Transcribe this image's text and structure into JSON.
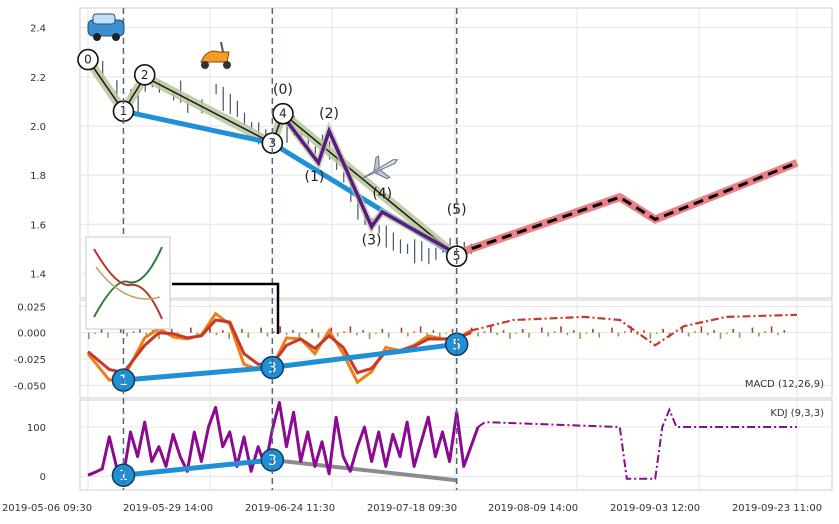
{
  "chart_data": [
    {
      "type": "line",
      "panel": "price",
      "ylim": [
        1.3,
        2.48
      ],
      "yticks": [
        "2.4",
        "2.2",
        "2.0",
        "1.8",
        "1.6",
        "1.4"
      ],
      "grid": true,
      "x_domain": [
        0,
        100
      ],
      "price_series": [
        [
          0,
          2.28
        ],
        [
          2,
          2.22
        ],
        [
          4,
          2.15
        ],
        [
          5,
          2.06
        ],
        [
          6,
          2.13
        ],
        [
          7,
          2.1
        ],
        [
          8,
          2.18
        ],
        [
          9,
          2.19
        ],
        [
          10,
          2.16
        ],
        [
          12,
          2.12
        ],
        [
          13,
          2.14
        ],
        [
          14,
          2.09
        ],
        [
          16,
          2.08
        ],
        [
          18,
          2.15
        ],
        [
          19,
          2.11
        ],
        [
          20,
          2.09
        ],
        [
          21,
          2.07
        ],
        [
          22,
          2.03
        ],
        [
          23,
          2.0
        ],
        [
          24,
          1.97
        ],
        [
          25,
          1.95
        ],
        [
          26,
          1.93
        ],
        [
          27,
          2.01
        ],
        [
          28,
          1.98
        ],
        [
          29,
          2.0
        ],
        [
          30,
          1.96
        ],
        [
          31,
          1.94
        ],
        [
          32,
          1.9
        ],
        [
          33,
          1.92
        ],
        [
          34,
          1.9
        ],
        [
          35,
          1.85
        ],
        [
          36,
          1.79
        ],
        [
          37,
          1.74
        ],
        [
          38,
          1.66
        ],
        [
          39,
          1.63
        ],
        [
          40,
          1.6
        ],
        [
          41,
          1.58
        ],
        [
          42,
          1.55
        ],
        [
          43,
          1.53
        ],
        [
          44,
          1.51
        ],
        [
          45,
          1.5
        ],
        [
          46,
          1.49
        ],
        [
          47,
          1.49
        ],
        [
          48,
          1.47
        ],
        [
          49,
          1.48
        ],
        [
          50,
          1.5
        ],
        [
          51,
          1.5
        ],
        [
          52,
          1.51
        ],
        [
          53,
          1.5
        ],
        [
          54,
          1.5
        ]
      ],
      "wave_main": {
        "labels": [
          "0",
          "1",
          "2",
          "3",
          "4",
          "5"
        ],
        "points": [
          [
            0,
            2.27
          ],
          [
            5,
            2.06
          ],
          [
            8,
            2.2
          ],
          [
            26,
            1.93
          ],
          [
            27.5,
            2.05
          ],
          [
            52,
            1.47
          ]
        ]
      },
      "wave_sub": {
        "labels": [
          "(0)",
          "(1)",
          "(2)",
          "(3)",
          "(4)",
          "(5)"
        ],
        "points": [
          [
            27.5,
            2.04
          ],
          [
            32.5,
            1.85
          ],
          [
            34,
            1.98
          ],
          [
            40,
            1.59
          ],
          [
            41.5,
            1.65
          ],
          [
            52,
            1.48
          ]
        ]
      },
      "trendline_1_3": [
        [
          5,
          2.06
        ],
        [
          26,
          1.93
        ],
        [
          52,
          1.47
        ]
      ],
      "projection": [
        [
          52,
          1.48
        ],
        [
          75,
          1.71
        ],
        [
          80,
          1.62
        ],
        [
          100,
          1.85
        ]
      ],
      "vlines_x": [
        5,
        26,
        52
      ]
    },
    {
      "type": "line",
      "panel": "macd",
      "legend": "MACD (12,26,9)",
      "ylim": [
        -0.062,
        0.031
      ],
      "yticks": [
        "0.025",
        "0.000",
        "-0.025",
        "-0.050"
      ],
      "series": [
        {
          "name": "macd",
          "color": "#f07f1a",
          "values": [
            [
              0,
              -0.02
            ],
            [
              3,
              -0.045
            ],
            [
              5,
              -0.043
            ],
            [
              8,
              -0.005
            ],
            [
              10,
              0.004
            ],
            [
              12,
              -0.004
            ],
            [
              14,
              -0.006
            ],
            [
              16,
              -0.002
            ],
            [
              18,
              0.018
            ],
            [
              20,
              0.008
            ],
            [
              22,
              -0.03
            ],
            [
              24,
              -0.035
            ],
            [
              26,
              -0.032
            ],
            [
              28,
              -0.005
            ],
            [
              30,
              -0.006
            ],
            [
              32,
              -0.02
            ],
            [
              34,
              0.002
            ],
            [
              36,
              -0.02
            ],
            [
              38,
              -0.047
            ],
            [
              40,
              -0.037
            ],
            [
              42,
              -0.014
            ],
            [
              44,
              -0.017
            ],
            [
              46,
              -0.012
            ],
            [
              48,
              -0.003
            ],
            [
              50,
              -0.006
            ],
            [
              52,
              -0.006
            ],
            [
              54,
              0.002
            ]
          ]
        },
        {
          "name": "signal",
          "color": "#c63a2c",
          "values": [
            [
              0,
              -0.018
            ],
            [
              3,
              -0.035
            ],
            [
              5,
              -0.038
            ],
            [
              8,
              -0.012
            ],
            [
              10,
              0.0
            ],
            [
              12,
              -0.001
            ],
            [
              14,
              -0.005
            ],
            [
              16,
              -0.003
            ],
            [
              18,
              0.012
            ],
            [
              20,
              0.01
            ],
            [
              22,
              -0.02
            ],
            [
              24,
              -0.03
            ],
            [
              26,
              -0.03
            ],
            [
              28,
              -0.012
            ],
            [
              30,
              -0.006
            ],
            [
              32,
              -0.015
            ],
            [
              34,
              -0.003
            ],
            [
              36,
              -0.014
            ],
            [
              38,
              -0.038
            ],
            [
              40,
              -0.034
            ],
            [
              42,
              -0.018
            ],
            [
              44,
              -0.017
            ],
            [
              46,
              -0.013
            ],
            [
              48,
              -0.006
            ],
            [
              50,
              -0.006
            ],
            [
              52,
              -0.005
            ],
            [
              54,
              0.0
            ]
          ]
        }
      ],
      "projection": [
        [
          54,
          0.002
        ],
        [
          60,
          0.012
        ],
        [
          70,
          0.015
        ],
        [
          75,
          0.012
        ],
        [
          80,
          -0.012
        ],
        [
          84,
          0.006
        ],
        [
          90,
          0.015
        ],
        [
          100,
          0.017
        ]
      ],
      "wave": {
        "labels": [
          "1",
          "3",
          "5"
        ],
        "points": [
          [
            5,
            -0.045
          ],
          [
            26,
            -0.033
          ],
          [
            52,
            -0.011
          ]
        ]
      }
    },
    {
      "type": "line",
      "panel": "kdj",
      "legend": "KDJ (9,3,3)",
      "ylim": [
        -28,
        155
      ],
      "yticks": [
        "100",
        "0"
      ],
      "series": [
        {
          "name": "kdj",
          "color": "#8b0a91",
          "values": [
            [
              0,
              2
            ],
            [
              1,
              8
            ],
            [
              2,
              15
            ],
            [
              3,
              80
            ],
            [
              4,
              20
            ],
            [
              5,
              2
            ],
            [
              6,
              90
            ],
            [
              7,
              40
            ],
            [
              8,
              110
            ],
            [
              9,
              30
            ],
            [
              10,
              60
            ],
            [
              11,
              20
            ],
            [
              12,
              85
            ],
            [
              13,
              40
            ],
            [
              14,
              10
            ],
            [
              15,
              90
            ],
            [
              16,
              30
            ],
            [
              17,
              100
            ],
            [
              18,
              140
            ],
            [
              19,
              60
            ],
            [
              20,
              90
            ],
            [
              21,
              20
            ],
            [
              22,
              80
            ],
            [
              23,
              10
            ],
            [
              24,
              60
            ],
            [
              25,
              20
            ],
            [
              26,
              95
            ],
            [
              27,
              150
            ],
            [
              28,
              60
            ],
            [
              29,
              130
            ],
            [
              30,
              30
            ],
            [
              31,
              90
            ],
            [
              32,
              20
            ],
            [
              33,
              70
            ],
            [
              34,
              5
            ],
            [
              35,
              120
            ],
            [
              36,
              40
            ],
            [
              37,
              10
            ],
            [
              38,
              60
            ],
            [
              39,
              100
            ],
            [
              40,
              30
            ],
            [
              41,
              90
            ],
            [
              42,
              20
            ],
            [
              43,
              85
            ],
            [
              44,
              40
            ],
            [
              45,
              110
            ],
            [
              46,
              20
            ],
            [
              47,
              70
            ],
            [
              48,
              120
            ],
            [
              49,
              40
            ],
            [
              50,
              90
            ],
            [
              51,
              30
            ],
            [
              52,
              130
            ],
            [
              53,
              20
            ],
            [
              54,
              60
            ],
            [
              55,
              100
            ]
          ]
        }
      ],
      "projection": [
        [
          55,
          100
        ],
        [
          56,
          110
        ],
        [
          75,
          100
        ],
        [
          76,
          -5
        ],
        [
          80,
          -5
        ],
        [
          81,
          100
        ],
        [
          82,
          135
        ],
        [
          83,
          100
        ],
        [
          100,
          100
        ]
      ],
      "wave": {
        "labels": [
          "1",
          "3"
        ],
        "points": [
          [
            5,
            2
          ],
          [
            26,
            33
          ]
        ]
      }
    }
  ],
  "x_ticks": [
    "2019-05-06 09:30",
    "2019-05-29 14:00",
    "2019-06-24 11:30",
    "2019-07-18 09:30",
    "2019-08-09 14:00",
    "2019-09-03 12:00",
    "2019-09-23 11:00"
  ],
  "icons": [
    "car-icon",
    "scooter-icon",
    "airplane-icon",
    "wave-thumbnail-icon"
  ],
  "colors": {
    "main_wave": "#1b1b1b",
    "main_wave_halo": "#b8c79a",
    "sub_wave": "#5b1a86",
    "trendline": "#1f8fd6",
    "projection_halo": "#e9737a",
    "projection": "#000000",
    "vline": "#52657a"
  }
}
